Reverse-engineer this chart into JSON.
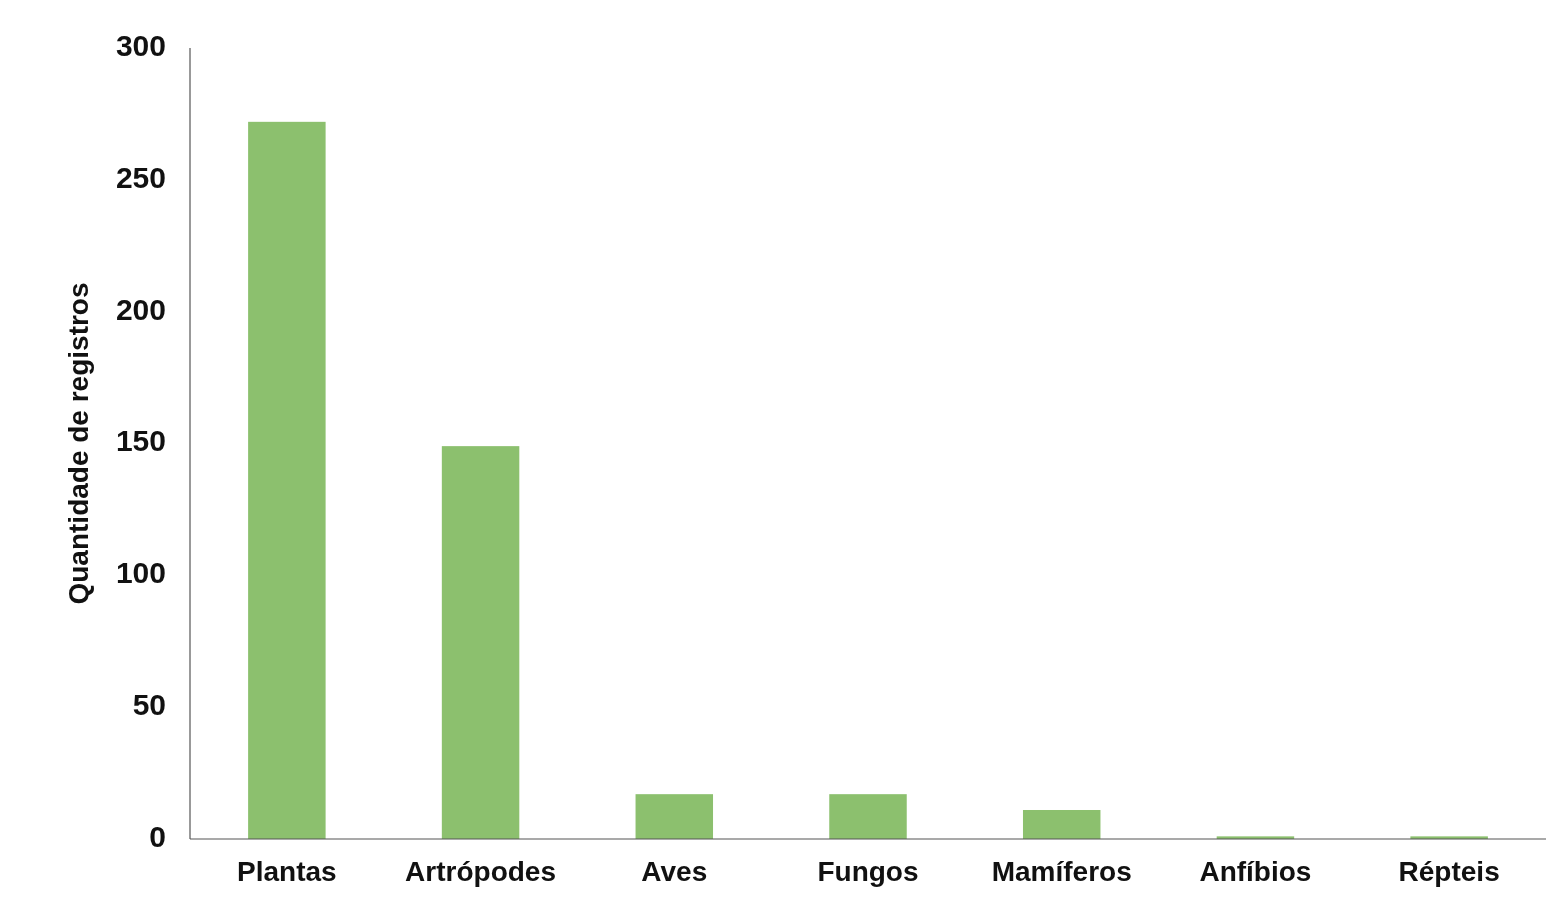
{
  "chart_data": {
    "type": "bar",
    "ylabel": "Quantidade de registros",
    "categories": [
      "Plantas",
      "Artrópodes",
      "Aves",
      "Fungos",
      "Mamíferos",
      "Anfíbios",
      "Répteis"
    ],
    "values": [
      272,
      149,
      17,
      17,
      11,
      1,
      1
    ],
    "color": "#8cc06e",
    "ylim": [
      0,
      300
    ],
    "yticks": [
      0,
      50,
      100,
      150,
      200,
      250,
      300
    ],
    "grid": false
  }
}
